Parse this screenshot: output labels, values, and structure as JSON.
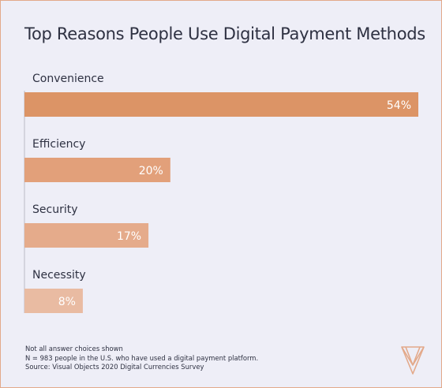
{
  "chart_data": {
    "type": "bar",
    "orientation": "horizontal",
    "title": "Top Reasons People Use Digital Payment Methods",
    "categories": [
      "Convenience",
      "Efficiency",
      "Security",
      "Necessity"
    ],
    "values": [
      54,
      20,
      17,
      8
    ],
    "value_labels": [
      "54%",
      "20%",
      "17%",
      "8%"
    ],
    "bar_colors": [
      "#dc9466",
      "#e2a07a",
      "#e5ab8b",
      "#e9bba2"
    ],
    "xlim": [
      0,
      54
    ],
    "grid": false,
    "legend": "none"
  },
  "notes": [
    "Not all answer choices shown",
    "N = 983 people in the U.S. who have used a digital payment platform.",
    "Source: Visual Objects 2020 Digital Currencies Survey"
  ],
  "logo": {
    "icon": "visual-objects-logo-icon",
    "color": "#e3a98a"
  }
}
